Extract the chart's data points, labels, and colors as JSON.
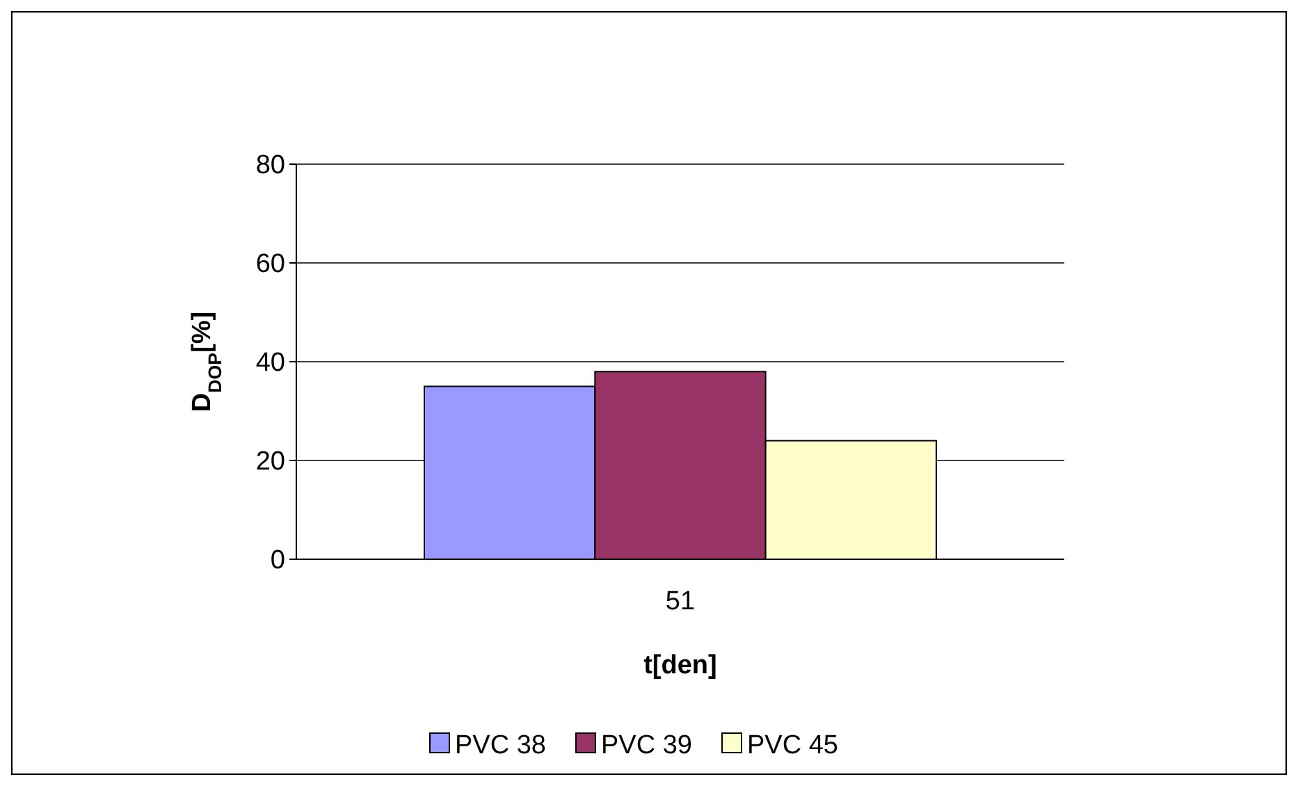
{
  "chart_data": {
    "type": "bar",
    "xlabel": "t[den]",
    "ylabel": "D$_{DOP}$[%]",
    "categories": [
      "51"
    ],
    "series": [
      {
        "name": "PVC 38",
        "color": "#9999ff",
        "values": [
          35
        ]
      },
      {
        "name": "PVC 39",
        "color": "#993366",
        "values": [
          38
        ]
      },
      {
        "name": "PVC 45",
        "color": "#ffffcc",
        "values": [
          24
        ]
      }
    ],
    "ylim": [
      0,
      80
    ],
    "yticks": [
      0,
      20,
      40,
      60,
      80
    ],
    "grid": "y",
    "legend": "bottom"
  }
}
